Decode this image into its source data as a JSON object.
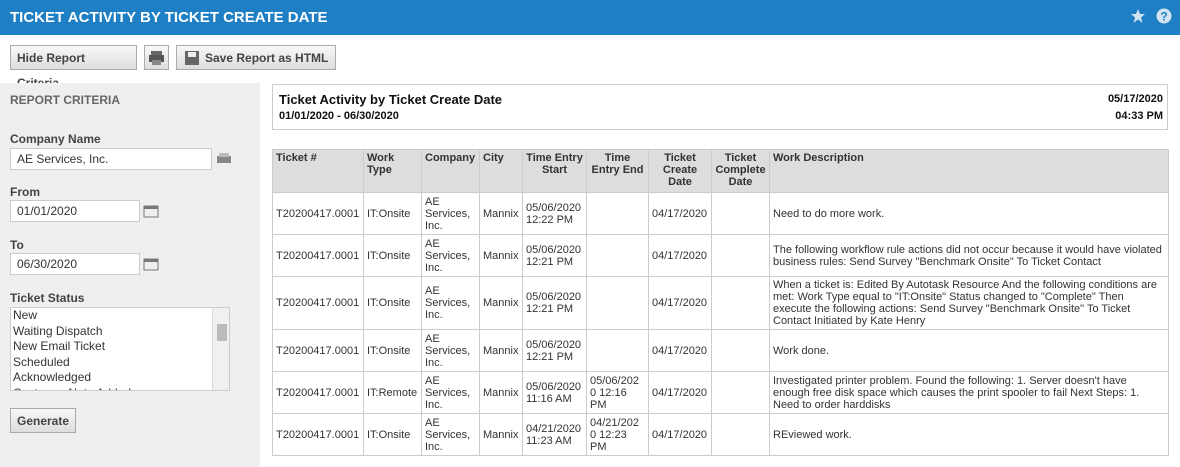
{
  "header": {
    "title": "TICKET ACTIVITY BY TICKET CREATE DATE"
  },
  "toolbar": {
    "hide_criteria": "Hide Report Criteria",
    "save_html": "Save Report as HTML"
  },
  "criteria": {
    "heading": "REPORT CRITERIA",
    "company_label": "Company Name",
    "company_value": "AE Services, Inc.",
    "from_label": "From",
    "from_value": "01/01/2020",
    "to_label": "To",
    "to_value": "06/30/2020",
    "status_label": "Ticket Status",
    "status_options": [
      "New",
      "Waiting Dispatch",
      "New Email Ticket",
      "Scheduled",
      "Acknowledged",
      "Customer Note Added"
    ],
    "generate": "Generate"
  },
  "report": {
    "title": "Ticket Activity by Ticket Create Date",
    "range": "01/01/2020 - 06/30/2020",
    "date": "05/17/2020",
    "time": "04:33 PM"
  },
  "table": {
    "columns": [
      "Ticket #",
      "Work Type",
      "Company",
      "City",
      "Time Entry Start",
      "Time Entry End",
      "Ticket Create Date",
      "Ticket Complete Date",
      "Work Description"
    ],
    "rows": [
      [
        "T20200417.0001",
        "IT:Onsite",
        "AE Services, Inc.",
        "Mannix",
        "05/06/2020 12:22 PM",
        null,
        "04/17/2020",
        null,
        "Need to do more work."
      ],
      [
        "T20200417.0001",
        "IT:Onsite",
        "AE Services, Inc.",
        "Mannix",
        "05/06/2020 12:21 PM",
        null,
        "04/17/2020",
        null,
        "The following workflow rule actions did not occur because it would have violated business rules: Send Survey \"Benchmark Onsite\" To Ticket Contact"
      ],
      [
        "T20200417.0001",
        "IT:Onsite",
        "AE Services, Inc.",
        "Mannix",
        "05/06/2020 12:21 PM",
        null,
        "04/17/2020",
        null,
        "When a ticket is: Edited By Autotask Resource And the following conditions are met: Work Type equal to \"IT:Onsite\" Status changed to \"Complete\" Then execute the following actions: Send Survey \"Benchmark Onsite\" To Ticket Contact Initiated by Kate Henry"
      ],
      [
        "T20200417.0001",
        "IT:Onsite",
        "AE Services, Inc.",
        "Mannix",
        "05/06/2020 12:21 PM",
        null,
        "04/17/2020",
        null,
        "Work done."
      ],
      [
        "T20200417.0001",
        "IT:Remote",
        "AE Services, Inc.",
        "Mannix",
        "05/06/2020 11:16 AM",
        "05/06/2020 12:16 PM",
        "04/17/2020",
        null,
        "Investigated printer problem. Found the following: 1. Server doesn't have enough free disk space which causes the print spooler to fail Next Steps: 1. Need to order harddisks"
      ],
      [
        "T20200417.0001",
        "IT:Onsite",
        "AE Services, Inc.",
        "Mannix",
        "04/21/2020 11:23 AM",
        "04/21/2020 12:23 PM",
        "04/17/2020",
        null,
        "REviewed work."
      ]
    ]
  }
}
